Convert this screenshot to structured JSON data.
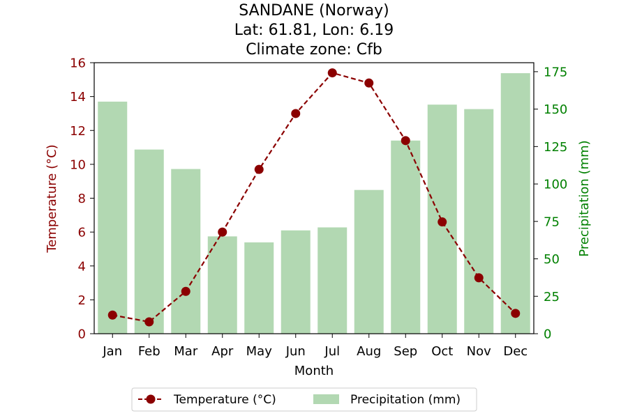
{
  "chart_data": {
    "type": "bar+line",
    "title_lines": [
      "SANDANE (Norway)",
      "Lat: 61.81, Lon: 6.19",
      "Climate zone: Cfb"
    ],
    "xlabel": "Month",
    "ylabel_left": "Temperature (°C)",
    "ylabel_right": "Precipitation (mm)",
    "categories": [
      "Jan",
      "Feb",
      "Mar",
      "Apr",
      "May",
      "Jun",
      "Jul",
      "Aug",
      "Sep",
      "Oct",
      "Nov",
      "Dec"
    ],
    "series": [
      {
        "name": "Temperature (°C)",
        "kind": "line",
        "axis": "left",
        "color": "#8b0000",
        "values": [
          1.1,
          0.7,
          2.5,
          6.0,
          9.7,
          13.0,
          15.4,
          14.8,
          11.4,
          6.6,
          3.3,
          1.2
        ]
      },
      {
        "name": "Precipitation (mm)",
        "kind": "bar",
        "axis": "right",
        "color": "#b2d8b2",
        "values": [
          155,
          123,
          110,
          65,
          61,
          69,
          71,
          96,
          129,
          153,
          150,
          174
        ]
      }
    ],
    "ylim_left": [
      0,
      16
    ],
    "ylim_right": [
      0,
      181
    ],
    "yticks_left": [
      0,
      2,
      4,
      6,
      8,
      10,
      12,
      14,
      16
    ],
    "yticks_right": [
      0,
      25,
      50,
      75,
      100,
      125,
      150,
      175
    ],
    "grid": false,
    "legend_position": "bottom-center"
  }
}
